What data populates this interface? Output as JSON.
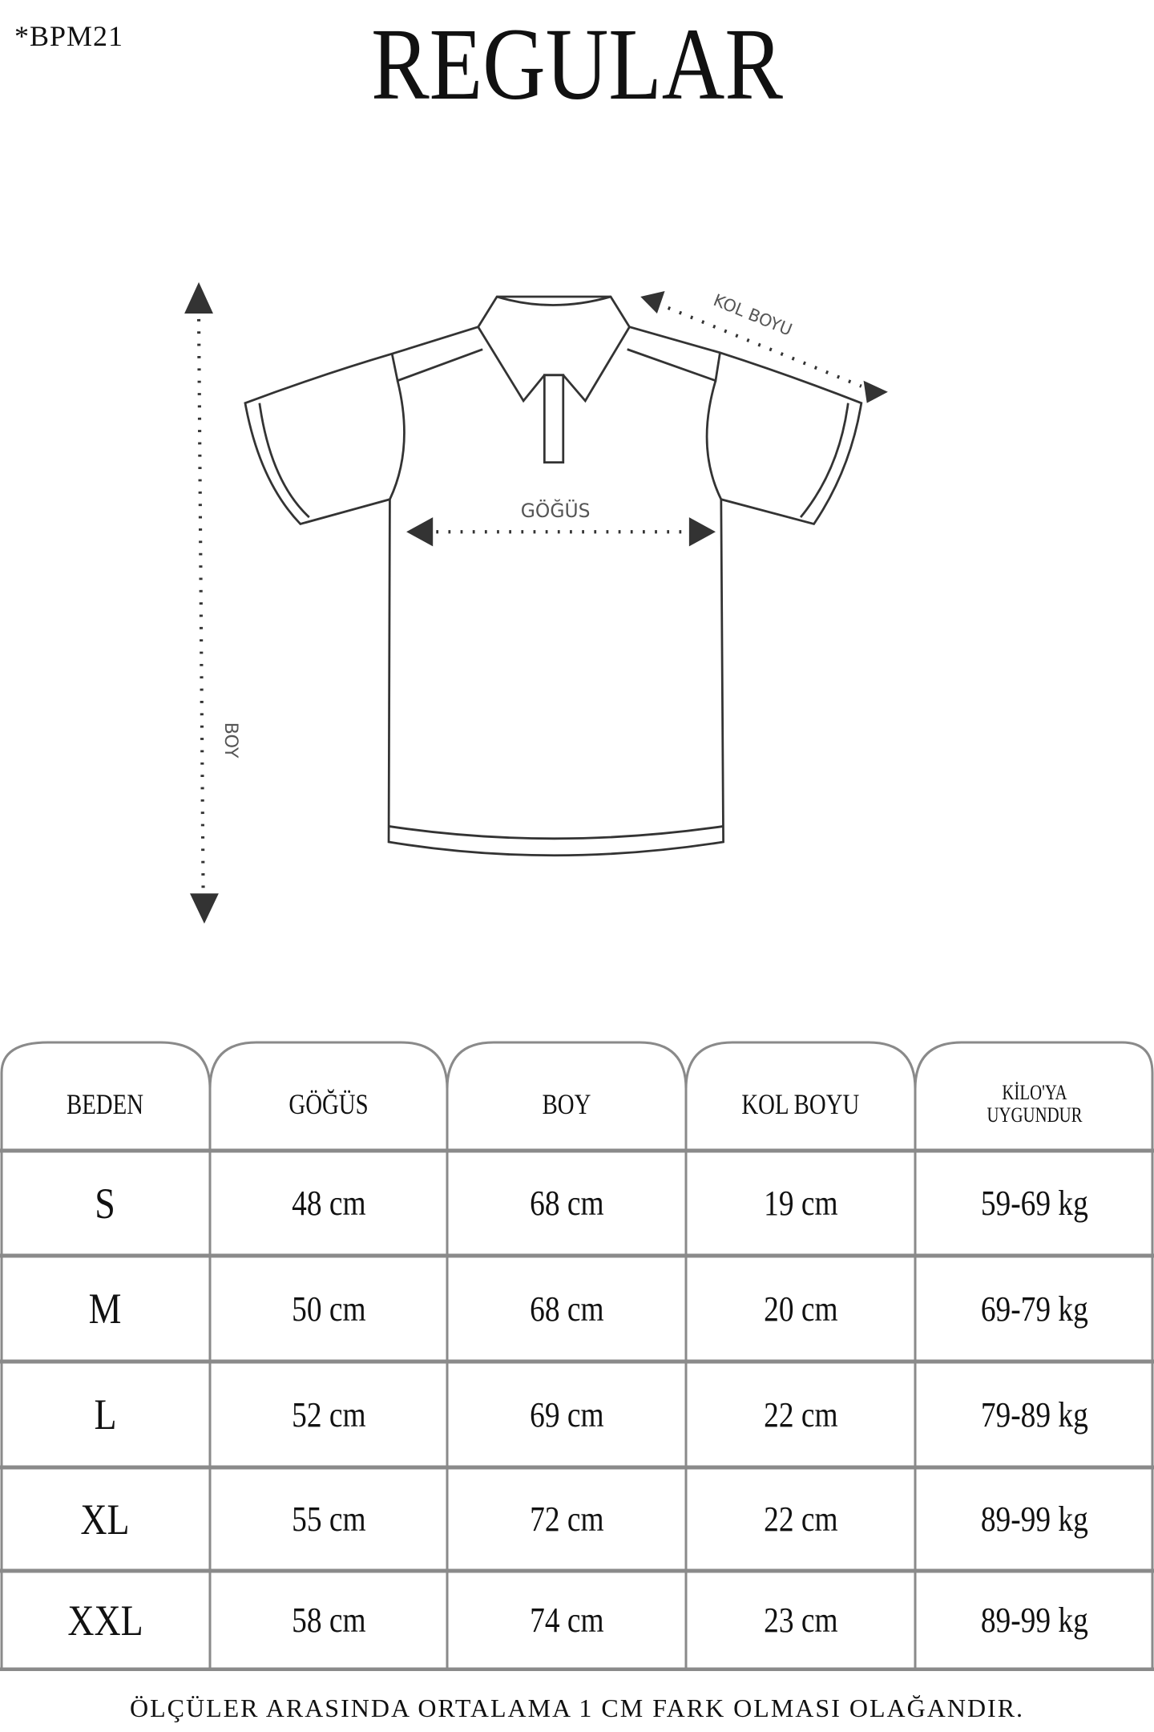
{
  "header": {
    "code": "*BPM21",
    "title": "REGULAR"
  },
  "diagram": {
    "chest_label": "GÖĞÜS",
    "sleeve_label": "KOL BOYU",
    "length_label": "BOY"
  },
  "table": {
    "headers": [
      "BEDEN",
      "GÖĞÜS",
      "BOY",
      "KOL BOYU",
      "KİLO'YA UYGUNDUR"
    ],
    "rows": [
      [
        "S",
        "48 cm",
        "68 cm",
        "19  cm",
        "59-69 kg"
      ],
      [
        "M",
        "50 cm",
        "68 cm",
        "20 cm",
        "69-79 kg"
      ],
      [
        "L",
        "52 cm",
        "69 cm",
        "22 cm",
        "79-89 kg"
      ],
      [
        "XL",
        "55 cm",
        "72 cm",
        "22 cm",
        "89-99 kg"
      ],
      [
        "XXL",
        "58 cm",
        "74 cm",
        "23 cm",
        "89-99 kg"
      ]
    ]
  },
  "footer": {
    "note": "ÖLÇÜLER ARASINDA ORTALAMA 1 CM FARK OLMASI OLAĞANDIR."
  },
  "colors": {
    "line": "#8a8a8a",
    "text": "#111111"
  }
}
